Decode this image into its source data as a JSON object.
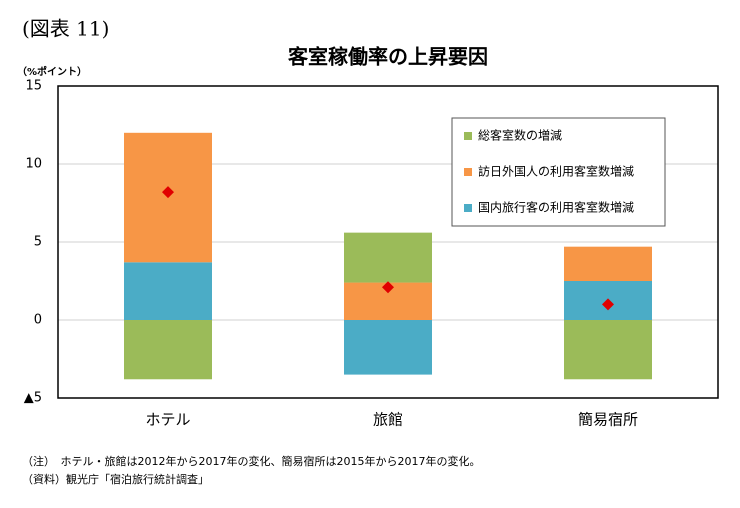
{
  "chart_data": {
    "type": "stacked_bar",
    "figure_label": "(図表 11)",
    "title": "客室稼働率の上昇要因",
    "y_unit": "（%ポイント）",
    "categories": [
      "ホテル",
      "旅館",
      "簡易宿所"
    ],
    "series": [
      {
        "name": "国内旅行客の利用客室数増減",
        "color": "#4bacc6",
        "values": [
          3.7,
          -3.5,
          2.5
        ]
      },
      {
        "name": "訪日外国人の利用客室数増減",
        "color": "#f79646",
        "values": [
          8.3,
          2.4,
          2.2
        ]
      },
      {
        "name": "総客室数の増減",
        "color": "#9bbb59",
        "values": [
          -3.8,
          3.2,
          -3.8
        ]
      }
    ],
    "markers": {
      "color": "#e00000",
      "values": [
        8.2,
        2.1,
        1.0
      ]
    },
    "ylim": [
      -5,
      15
    ],
    "yticks": [
      {
        "value": -5,
        "label": "▲5"
      },
      0,
      5,
      10,
      15
    ],
    "grid": true,
    "legend": "upper right",
    "notes": [
      "（注）　ホテル・旅館は2012年から2017年の変化、簡易宿所は2015年から2017年の変化。",
      "（資料）観光庁「宿泊旅行統計調査」"
    ]
  }
}
